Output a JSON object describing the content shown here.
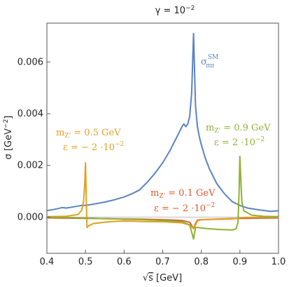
{
  "chart_data": {
    "type": "line",
    "title": "γ = 10⁻²",
    "xlabel": "√s [GeV]",
    "ylabel": "σ [GeV⁻²]",
    "xlim": [
      0.4,
      1.0
    ],
    "ylim": [
      -0.0014,
      0.0075
    ],
    "xticks": [
      0.4,
      0.5,
      0.6,
      0.7,
      0.8,
      0.9,
      1.0
    ],
    "xtick_labels": [
      "0.4",
      "0.5",
      "0.6",
      "0.7",
      "0.8",
      "0.9",
      "1.0"
    ],
    "yticks": [
      0.0,
      0.002,
      0.004,
      0.006
    ],
    "ytick_labels": [
      "0.000",
      "0.002",
      "0.004",
      "0.006"
    ],
    "grid": false,
    "zero_line": true,
    "series": [
      {
        "name": "σ_ππ^SM",
        "color": "#5b83c0",
        "x": [
          0.4,
          0.42,
          0.44,
          0.45,
          0.47,
          0.49,
          0.5,
          0.52,
          0.55,
          0.57,
          0.6,
          0.62,
          0.64,
          0.66,
          0.68,
          0.7,
          0.72,
          0.73,
          0.74,
          0.75,
          0.755,
          0.76,
          0.765,
          0.77,
          0.775,
          0.78,
          0.785,
          0.79,
          0.795,
          0.8,
          0.81,
          0.82,
          0.84,
          0.86,
          0.88,
          0.9,
          0.92,
          0.95,
          0.98,
          1.0
        ],
        "values": [
          0.00025,
          0.0003,
          0.00037,
          0.00035,
          0.0004,
          0.00045,
          0.00045,
          0.0005,
          0.00058,
          0.00065,
          0.00078,
          0.0009,
          0.00105,
          0.00135,
          0.0017,
          0.0021,
          0.0026,
          0.0029,
          0.0032,
          0.0035,
          0.0036,
          0.0035,
          0.0036,
          0.0039,
          0.0048,
          0.0071,
          0.0043,
          0.0035,
          0.0031,
          0.0028,
          0.0023,
          0.0019,
          0.0013,
          0.0009,
          0.0006,
          0.00045,
          0.00035,
          0.00028,
          0.00022,
          0.00025
        ]
      },
      {
        "name": "m_Z' = 0.5 GeV, ε = −2·10⁻²",
        "color": "#e0a020",
        "x": [
          0.4,
          0.45,
          0.48,
          0.49,
          0.495,
          0.498,
          0.5,
          0.502,
          0.504,
          0.507,
          0.52,
          0.56,
          0.6,
          0.65,
          0.7,
          0.75,
          0.77,
          0.78,
          0.785,
          0.79,
          0.8,
          0.85,
          0.88,
          0.895,
          0.9,
          0.905,
          0.92,
          0.95,
          1.0
        ],
        "values": [
          2e-05,
          3e-05,
          0.0001,
          0.00025,
          0.0006,
          0.0013,
          0.0021,
          0.0006,
          -0.0004,
          -0.00035,
          -0.00025,
          -0.00018,
          -0.00015,
          -0.00017,
          -0.00018,
          -0.00022,
          -0.0003,
          -0.00045,
          -0.0003,
          -0.00015,
          -0.0001,
          -8e-05,
          -7e-05,
          -5e-05,
          -3e-05,
          -2e-05,
          -1e-05,
          -1e-05,
          0.0
        ]
      },
      {
        "name": "m_Z' = 0.9 GeV, ε = 2·10⁻²",
        "color": "#8fb032",
        "x": [
          0.4,
          0.45,
          0.5,
          0.55,
          0.6,
          0.65,
          0.7,
          0.75,
          0.77,
          0.78,
          0.785,
          0.79,
          0.8,
          0.82,
          0.85,
          0.88,
          0.89,
          0.895,
          0.898,
          0.9,
          0.902,
          0.905,
          0.91,
          0.93,
          0.96,
          1.0
        ],
        "values": [
          -1e-05,
          -2e-05,
          -4e-05,
          -6e-05,
          -8e-05,
          -0.0001,
          -0.00013,
          -0.00018,
          -0.0003,
          -0.00085,
          -0.0004,
          -0.0004,
          -0.00042,
          -0.00045,
          -0.00048,
          -0.0005,
          -0.00045,
          -0.0002,
          0.001,
          0.00235,
          0.0016,
          0.0006,
          0.00025,
          8e-05,
          3e-05,
          2e-05
        ]
      },
      {
        "name": "m_Z' = 0.1 GeV, ε = −2·10⁻²",
        "color": "#e05a2a",
        "x": [
          0.4,
          0.45,
          0.5,
          0.55,
          0.6,
          0.65,
          0.7,
          0.75,
          0.77,
          0.78,
          0.785,
          0.79,
          0.8,
          0.85,
          0.9,
          0.95,
          1.0
        ],
        "values": [
          -3e-05,
          -4e-05,
          -5e-05,
          -6e-05,
          -7e-05,
          -8e-05,
          -0.0001,
          -0.00013,
          -0.0002,
          -0.00045,
          -0.00025,
          -0.00012,
          -0.0001,
          -7e-05,
          -5e-05,
          -4e-05,
          -3e-05
        ]
      }
    ],
    "annotations": [
      {
        "id": "sm",
        "text": "σ",
        "sub": "ππ",
        "sup": "SM",
        "color": "#5b83c0"
      },
      {
        "id": "z05",
        "line1": "m_Z' = 0.5 GeV",
        "line2": "ε = − 2 ·10",
        "exp": "−2",
        "color": "#e0a020"
      },
      {
        "id": "z09",
        "line1": "m_Z' = 0.9 GeV",
        "line2": "ε = 2 ·10",
        "exp": "−2",
        "color": "#8fb032"
      },
      {
        "id": "z01",
        "line1": "m_Z' = 0.1 GeV",
        "line2": "ε = − 2 ·10",
        "exp": "−2",
        "color": "#e05a2a"
      }
    ]
  }
}
